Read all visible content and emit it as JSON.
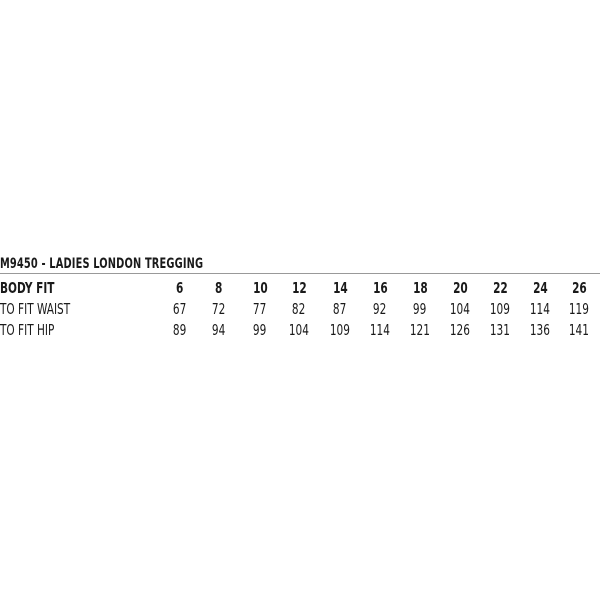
{
  "title": "M9450 - LADIES LONDON TREGGING",
  "table": {
    "columns": [
      "6",
      "8",
      "10",
      "12",
      "14",
      "16",
      "18",
      "20",
      "22",
      "24",
      "26"
    ],
    "header_label": "BODY FIT",
    "rows": [
      {
        "label": "TO FIT WAIST",
        "values": [
          "67",
          "72",
          "77",
          "82",
          "87",
          "92",
          "99",
          "104",
          "109",
          "114",
          "119"
        ]
      },
      {
        "label": "TO FIT HIP",
        "values": [
          "89",
          "94",
          "99",
          "104",
          "109",
          "114",
          "121",
          "126",
          "131",
          "136",
          "141"
        ]
      }
    ]
  }
}
